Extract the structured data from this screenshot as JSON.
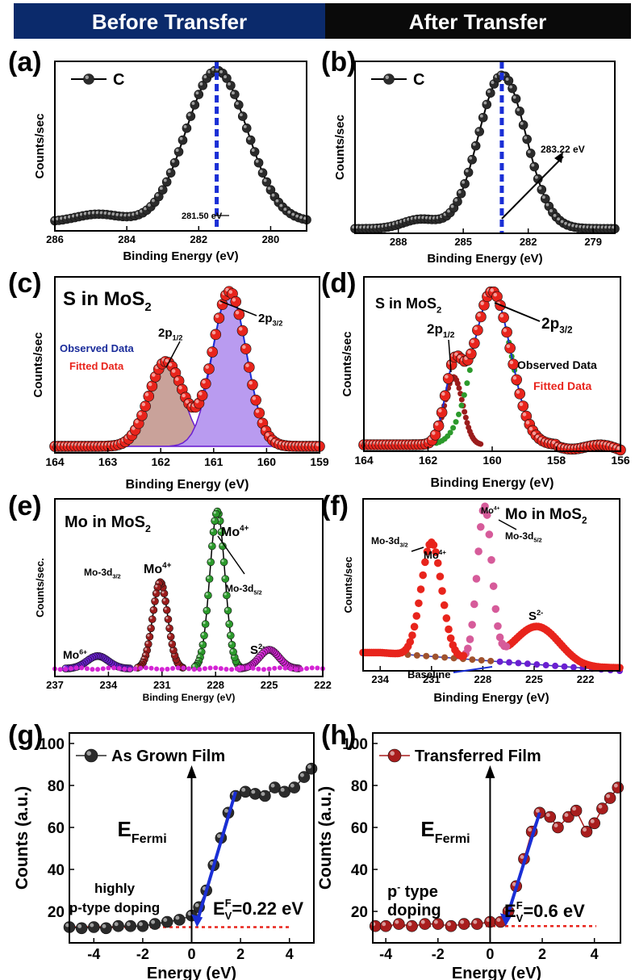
{
  "headers": {
    "left": "Before Transfer",
    "right": "After Transfer",
    "left_bg": "#0b2a6b",
    "right_bg": "#0a0a0a"
  },
  "colors": {
    "black_marker": "#2b2b2b",
    "red_marker": "#e8241c",
    "blue": "#1a2fd6",
    "purple_fill": "#b99bf0",
    "brown_fill": "#c9a29a",
    "green": "#2c9a2c",
    "magenta": "#d424d4",
    "dark_red": "#9b1c1c",
    "violet": "#6a1fd1"
  },
  "chart_data": [
    {
      "id": "a",
      "type": "scatter",
      "panel_label": "(a)",
      "xlabel": "Binding Energy (eV)",
      "ylabel": "Counts/sec",
      "xlim": [
        286,
        279
      ],
      "xticks": [
        286,
        284,
        282,
        280
      ],
      "legend": "C",
      "legend_position": "top-left",
      "series": [
        {
          "name": "C",
          "peaks": [
            [
              281.5,
              1.0,
              0.85
            ],
            [
              284.8,
              0.05,
              0.6
            ]
          ],
          "baseline": 0.06
        }
      ],
      "vline": 281.5,
      "annotations": [
        {
          "text": "281.50 eV",
          "x": 281.5
        }
      ]
    },
    {
      "id": "b",
      "type": "scatter",
      "panel_label": "(b)",
      "xlabel": "Binding Energy (eV)",
      "ylabel": "Counts/sec",
      "xlim": [
        290,
        278
      ],
      "xticks": [
        288,
        285,
        282,
        279
      ],
      "legend": "C",
      "legend_position": "top-left",
      "series": [
        {
          "name": "C",
          "peaks": [
            [
              283.2,
              1.0,
              1.1
            ],
            [
              287.0,
              0.06,
              0.8
            ]
          ],
          "baseline": 0.03
        }
      ],
      "vline": 283.22,
      "annotations": [
        {
          "text": "283.22 eV",
          "x": 283.22
        }
      ]
    },
    {
      "id": "c",
      "type": "area",
      "panel_label": "(c)",
      "title": "S in MoS",
      "title_sub": "2",
      "xlabel": "Binding Energy (eV)",
      "ylabel": "Counts/sec",
      "xlim": [
        164,
        159
      ],
      "xticks": [
        164,
        163,
        162,
        161,
        160,
        159
      ],
      "legend": [
        "Observed Data",
        "Fitted Data"
      ],
      "peaks": [
        {
          "label": "2p",
          "sub": "1/2",
          "center": 161.9,
          "height": 0.52,
          "width": 0.32
        },
        {
          "label": "2p",
          "sub": "3/2",
          "center": 160.7,
          "height": 0.95,
          "width": 0.32
        }
      ]
    },
    {
      "id": "d",
      "type": "scatter",
      "panel_label": "(d)",
      "title": "S in MoS",
      "title_sub": "2",
      "xlabel": "Binding Energy (eV)",
      "ylabel": "Counts/sec",
      "xlim": [
        164,
        156
      ],
      "xticks": [
        164,
        162,
        160,
        158,
        156
      ],
      "legend": [
        "Observed Data",
        "Fitted Data"
      ],
      "peaks": [
        {
          "label": "2p",
          "sub": "1/2",
          "center": 161.2,
          "height": 0.42,
          "width": 0.28
        },
        {
          "label": "2p",
          "sub": "3/2",
          "center": 160.0,
          "height": 0.95,
          "width": 0.58
        }
      ]
    },
    {
      "id": "e",
      "type": "scatter",
      "panel_label": "(e)",
      "title": "Mo in MoS",
      "title_sub": "2",
      "xlabel": "Binding Energy (eV)",
      "ylabel": "Counts/sec.",
      "xlim": [
        237,
        222
      ],
      "xticks": [
        237,
        234,
        231,
        228,
        225,
        222
      ],
      "peaks": [
        {
          "center": 234.6,
          "height": 0.08,
          "width": 0.6,
          "color": "violet"
        },
        {
          "center": 231.1,
          "height": 0.55,
          "width": 0.42,
          "color": "dark_red"
        },
        {
          "center": 227.9,
          "height": 1.0,
          "width": 0.42,
          "color": "green"
        },
        {
          "center": 225.0,
          "height": 0.12,
          "width": 0.55,
          "color": "magenta"
        }
      ],
      "labels": [
        {
          "text": "Mo",
          "sup": "6+"
        },
        {
          "text": "Mo",
          "sup": "4+"
        },
        {
          "text": "Mo-3d",
          "sub": "3/2"
        },
        {
          "text": "Mo",
          "sup": "4+"
        },
        {
          "text": "Mo-3d",
          "sub": "5/2"
        },
        {
          "text": "S",
          "sup": "2-"
        }
      ]
    },
    {
      "id": "f",
      "type": "scatter",
      "panel_label": "(f)",
      "title": "Mo in MoS",
      "title_sub": "2",
      "xlabel": "Binding Energy (eV)",
      "ylabel": "Counts/sec",
      "xlim": [
        235,
        220
      ],
      "xticks": [
        234,
        231,
        228,
        225,
        222
      ],
      "peaks": [
        {
          "center": 231.0,
          "height": 0.75,
          "width": 0.6
        },
        {
          "center": 227.9,
          "height": 1.0,
          "width": 0.42
        },
        {
          "center": 224.8,
          "height": 0.25,
          "width": 1.3
        }
      ],
      "labels": [
        {
          "text": "Mo-3d",
          "sub": "3/2"
        },
        {
          "text": "Mo",
          "sup": "4+"
        },
        {
          "text": "Mo",
          "sup": "4+"
        },
        {
          "text": "Mo-3d",
          "sub": "5/2"
        },
        {
          "text": "S",
          "sup": "2-"
        },
        {
          "text": "Baseline"
        }
      ]
    },
    {
      "id": "g",
      "type": "scatter",
      "panel_label": "(g)",
      "xlabel": "Energy (eV)",
      "ylabel": "Counts (a.u.)",
      "xlim": [
        -5,
        5
      ],
      "ylim": [
        5,
        105
      ],
      "xticks": [
        -4,
        -2,
        0,
        2,
        4
      ],
      "yticks": [
        20,
        40,
        60,
        80,
        100
      ],
      "legend": "As Grown Film",
      "points": [
        [
          -5,
          12.5
        ],
        [
          -4.5,
          12
        ],
        [
          -4,
          12.5
        ],
        [
          -3.5,
          12
        ],
        [
          -3,
          13
        ],
        [
          -2.5,
          13
        ],
        [
          -2,
          13
        ],
        [
          -1.5,
          14
        ],
        [
          -1,
          15
        ],
        [
          -0.5,
          16
        ],
        [
          0,
          18
        ],
        [
          0.3,
          22
        ],
        [
          0.6,
          30
        ],
        [
          0.9,
          42
        ],
        [
          1.2,
          55
        ],
        [
          1.5,
          67
        ],
        [
          1.8,
          75
        ],
        [
          2.2,
          77
        ],
        [
          2.6,
          76
        ],
        [
          3,
          75
        ],
        [
          3.4,
          79
        ],
        [
          3.8,
          77
        ],
        [
          4.2,
          79
        ],
        [
          4.6,
          84
        ],
        [
          4.9,
          88
        ]
      ],
      "baseline": 12.5,
      "fermi_label": "E",
      "fermi_sub": "Fermi",
      "doping_text": [
        "highly",
        "p-type doping"
      ],
      "ev_label": "E",
      "ev_sup": "F",
      "ev_sub": "V",
      "ev_value": "=0.22 eV",
      "fit_line": [
        [
          0.22,
          12.5
        ],
        [
          1.8,
          77
        ]
      ]
    },
    {
      "id": "h",
      "type": "scatter",
      "panel_label": "(h)",
      "xlabel": "Energy (eV)",
      "ylabel": "Counts (a.u.)",
      "xlim": [
        -4.5,
        5
      ],
      "ylim": [
        5,
        105
      ],
      "xticks": [
        -4,
        -2,
        0,
        2,
        4
      ],
      "yticks": [
        20,
        40,
        60,
        80,
        100
      ],
      "legend": "Transferred  Film",
      "points": [
        [
          -4.4,
          13
        ],
        [
          -4,
          13
        ],
        [
          -3.5,
          14
        ],
        [
          -3,
          13
        ],
        [
          -2.5,
          14
        ],
        [
          -2,
          14
        ],
        [
          -1.5,
          13
        ],
        [
          -1,
          14
        ],
        [
          -0.5,
          14
        ],
        [
          0,
          15
        ],
        [
          0.4,
          15
        ],
        [
          0.7,
          20
        ],
        [
          1,
          32
        ],
        [
          1.3,
          45
        ],
        [
          1.6,
          58
        ],
        [
          1.9,
          67
        ],
        [
          2.3,
          65
        ],
        [
          2.6,
          60
        ],
        [
          3,
          65
        ],
        [
          3.3,
          68
        ],
        [
          3.7,
          58
        ],
        [
          4,
          62
        ],
        [
          4.3,
          69
        ],
        [
          4.6,
          74
        ],
        [
          4.9,
          79
        ]
      ],
      "baseline": 13,
      "fermi_label": "E",
      "fermi_sub": "Fermi",
      "doping_text": [
        "p",
        "type",
        "doping"
      ],
      "ev_label": "E",
      "ev_sup": "F",
      "ev_sub": "V",
      "ev_value": "=0.6 eV",
      "fit_line": [
        [
          0.6,
          13
        ],
        [
          1.9,
          67
        ]
      ]
    }
  ]
}
